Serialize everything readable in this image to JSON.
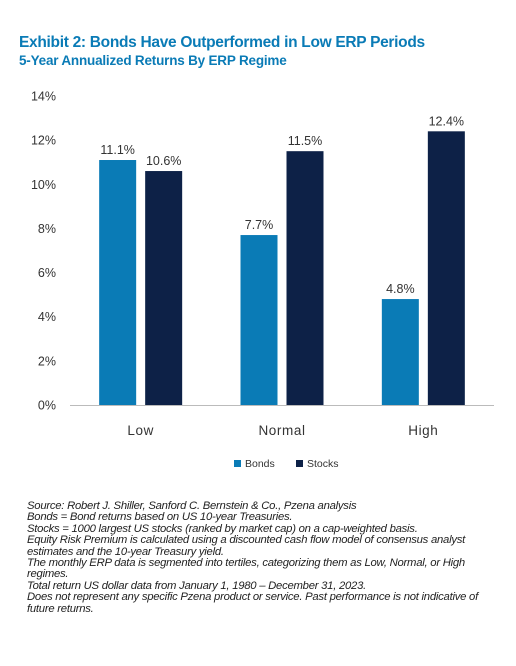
{
  "header": {
    "title": "Exhibit 2: Bonds Have Outperformed in Low ERP Periods",
    "subtitle": "5-Year Annualized Returns By ERP Regime"
  },
  "chart_data": {
    "type": "bar",
    "title": "",
    "xlabel": "",
    "ylabel": "",
    "categories": [
      "Low",
      "Normal",
      "High"
    ],
    "series": [
      {
        "name": "Bonds",
        "values": [
          11.1,
          7.7,
          4.8
        ],
        "color": "#0a7bb6"
      },
      {
        "name": "Stocks",
        "values": [
          10.6,
          11.5,
          12.4
        ],
        "color": "#0d2147"
      }
    ],
    "value_suffix": "%",
    "ylim": [
      0,
      14
    ],
    "ytick_step": 2,
    "grid": false,
    "legend_position": "bottom-center"
  },
  "notes": [
    "Source: Robert J. Shiller, Sanford C. Bernstein & Co., Pzena analysis",
    "Bonds = Bond returns based on US 10-year Treasuries.",
    "Stocks = 1000 largest US stocks (ranked by market cap) on a cap-weighted basis.",
    "Equity Risk Premium is calculated using a discounted cash flow model of consensus analyst estimates and the 10-year Treasury yield.",
    "The monthly ERP data is segmented into tertiles, categorizing them as Low, Normal, or High regimes.",
    "Total return US dollar data from January 1, 1980 – December 31, 2023.",
    "Does not represent any specific Pzena product or service. Past performance is not indicative of future returns."
  ]
}
